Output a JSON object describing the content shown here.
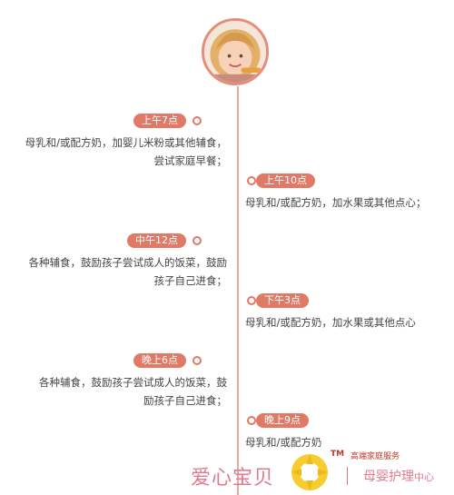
{
  "timeline": [
    {
      "time": "上午7点",
      "side": "left",
      "lines": [
        "母乳和/或配方奶，加婴儿米粉或其他辅食，",
        "尝试家庭早餐；"
      ]
    },
    {
      "time": "上午10点",
      "side": "right",
      "lines": [
        "母乳和/或配方奶，加水果或其他点心；"
      ]
    },
    {
      "time": "中午12点",
      "side": "left",
      "lines": [
        "各种辅食，鼓励孩子尝试成人的饭菜，鼓励",
        "孩子自己进食；"
      ]
    },
    {
      "time": "下午3点",
      "side": "right",
      "lines": [
        "母乳和/或配方奶，加水果或其他点心"
      ]
    },
    {
      "time": "晚上6点",
      "side": "left",
      "lines": [
        "各种辅食，鼓励孩子尝试成人的饭菜，鼓",
        "励孩子自己进食；"
      ]
    },
    {
      "time": "晚上9点",
      "side": "right",
      "lines": [
        "母乳和/或配方奶"
      ]
    }
  ],
  "footer": {
    "brand": "爱心宝贝",
    "tm": "TM",
    "service": "高端家庭服务",
    "center": "母婴护理",
    "center_suffix": "中心"
  },
  "icons": {
    "avatar": "child-eating-photo",
    "logo": "sun-logo-icon"
  },
  "colors": {
    "accent": "#e07a67",
    "line": "#e9a99c",
    "brand": "#e07a8e"
  }
}
